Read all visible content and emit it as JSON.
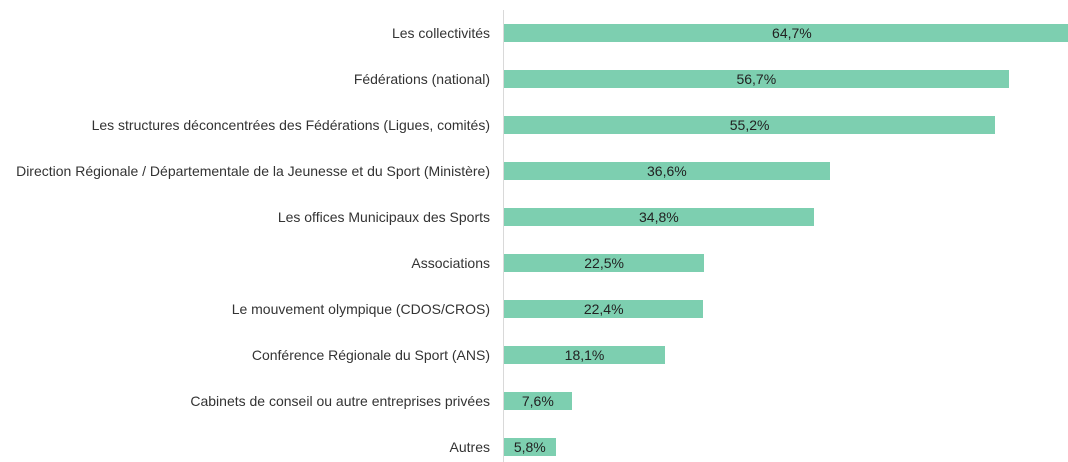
{
  "chart_data": {
    "type": "bar",
    "orientation": "horizontal",
    "categories": [
      "Les collectivités",
      "Fédérations (national)",
      "Les structures déconcentrées des Fédérations (Ligues, comités)",
      "Direction Régionale / Départementale de la Jeunesse et du Sport (Ministère)",
      "Les offices Municipaux des Sports",
      "Associations",
      "Le mouvement olympique (CDOS/CROS)",
      "Conférence Régionale du Sport (ANS)",
      "Cabinets de conseil ou autre entreprises privées",
      "Autres"
    ],
    "values": [
      64.7,
      56.7,
      55.2,
      36.6,
      34.8,
      22.5,
      22.4,
      18.1,
      7.6,
      5.8
    ],
    "value_labels": [
      "64,7%",
      "56,7%",
      "55,2%",
      "36,6%",
      "34,8%",
      "22,5%",
      "22,4%",
      "18,1%",
      "7,6%",
      "5,8%"
    ],
    "color": "#7dcfb0"
  }
}
